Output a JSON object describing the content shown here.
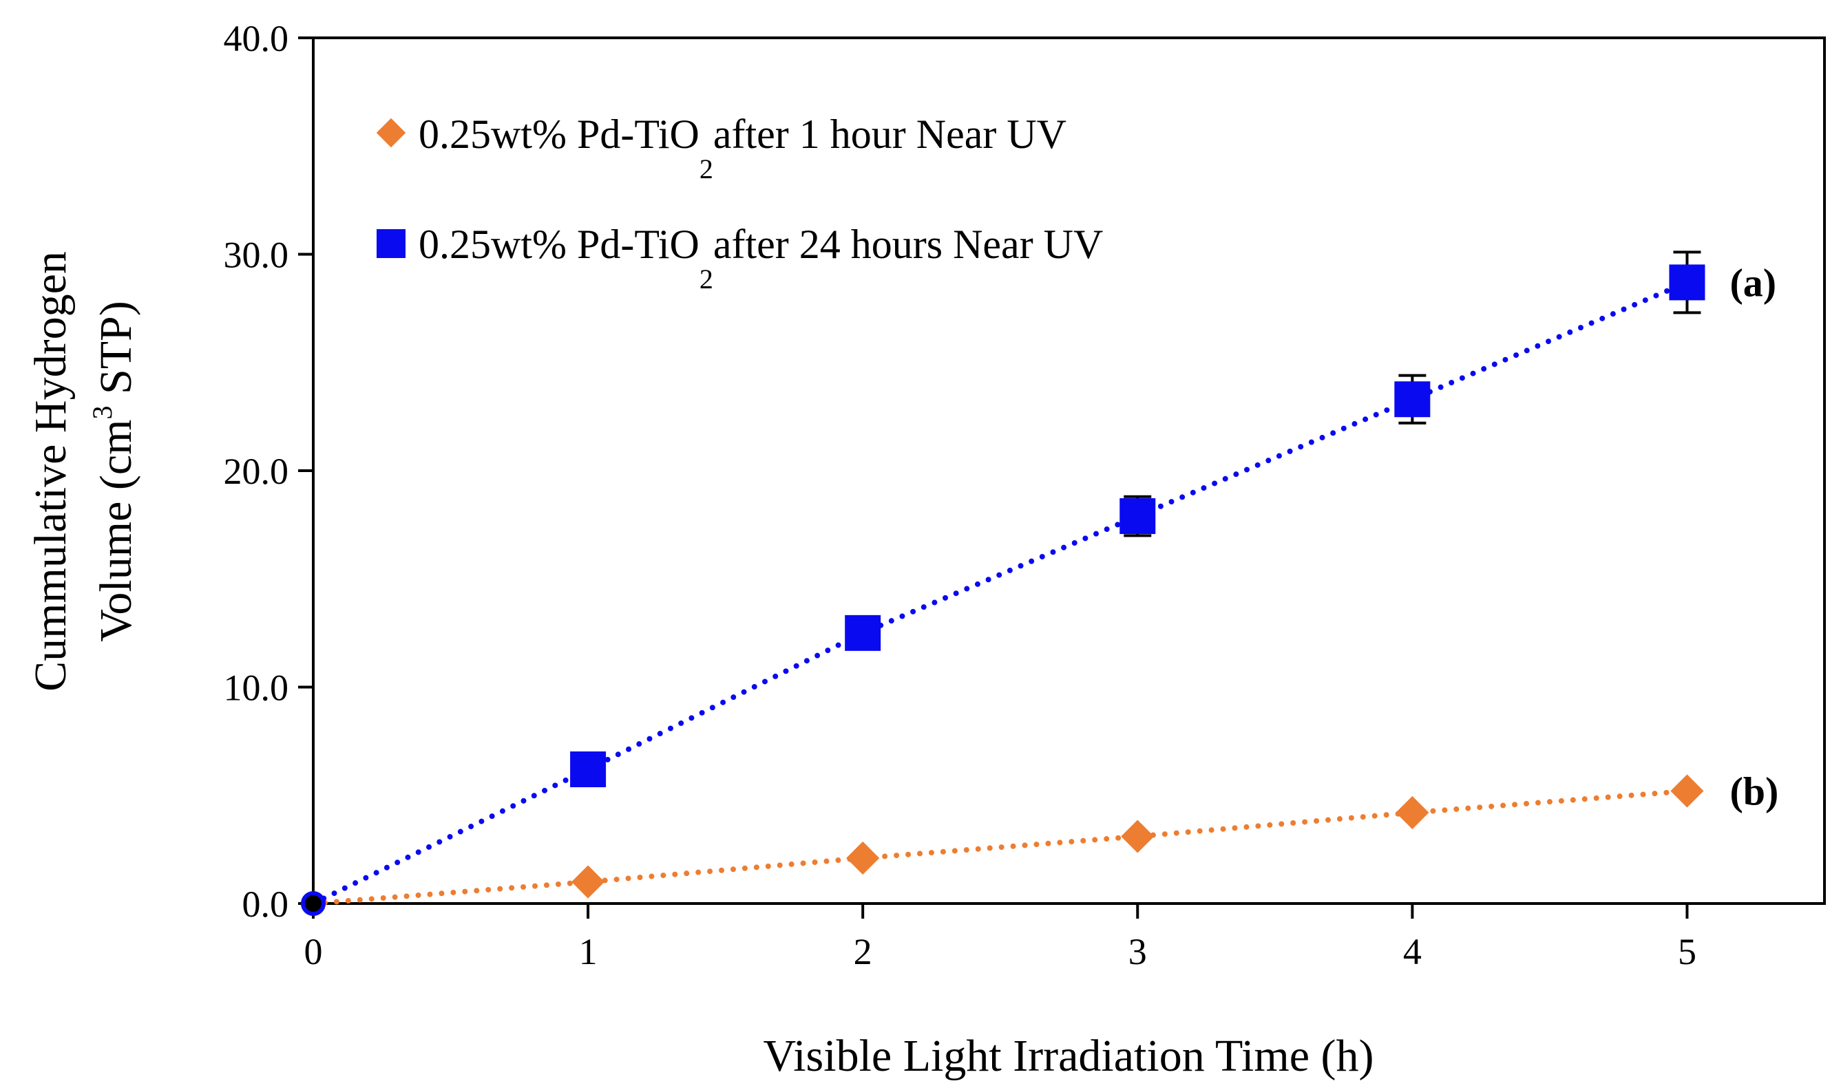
{
  "chart_data": {
    "type": "line",
    "title": "",
    "xlabel": "Visible Light Irradiation Time (h)",
    "ylabel_line1": "Cummulative Hydrogen",
    "ylabel_line2_pre": "Volume (cm",
    "ylabel_line2_sup": "3",
    "ylabel_line2_post": " STP)",
    "xlim": [
      0,
      5.5
    ],
    "ylim": [
      0,
      40
    ],
    "xticks": [
      0,
      1,
      2,
      3,
      4,
      5
    ],
    "xtick_labels": [
      "0",
      "1",
      "2",
      "3",
      "4",
      "5"
    ],
    "yticks": [
      0,
      10,
      20,
      30,
      40
    ],
    "ytick_labels": [
      "0.0",
      "10.0",
      "20.0",
      "30.0",
      "40.0"
    ],
    "grid": false,
    "legend_position": "top-left",
    "series": [
      {
        "key": "b",
        "name": "0.25wt% Pd-TiO2 after 1 hour Near UV",
        "legend_pre": "0.25wt% Pd-TiO",
        "legend_sub": "2",
        "legend_post": "after 1 hour Near UV",
        "tag": "(b)",
        "marker": "diamond",
        "color": "#ED7D31",
        "x": [
          0,
          1,
          2,
          3,
          4,
          5
        ],
        "y": [
          0,
          1.0,
          2.1,
          3.1,
          4.2,
          5.2
        ],
        "err": [
          0,
          0,
          0,
          0,
          0,
          0
        ]
      },
      {
        "key": "a",
        "name": "0.25wt% Pd-TiO2 after 24 hours Near UV",
        "legend_pre": "0.25wt% Pd-TiO",
        "legend_sub": "2",
        "legend_post": "after 24 hours Near UV",
        "tag": "(a)",
        "marker": "square",
        "color": "#0A0AF0",
        "x": [
          0,
          1,
          2,
          3,
          4,
          5
        ],
        "y": [
          0,
          6.2,
          12.5,
          17.9,
          23.3,
          28.7
        ],
        "err": [
          0,
          0,
          0,
          0.9,
          1.1,
          1.4
        ]
      }
    ]
  }
}
